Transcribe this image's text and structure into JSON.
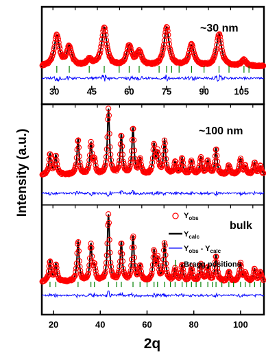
{
  "chart_data": [
    {
      "type": "line",
      "panel": "top",
      "annotation": "~30 nm",
      "x_ticks": [
        "30",
        "45",
        "60",
        "75",
        "90",
        "105"
      ],
      "xlim": [
        25,
        114
      ],
      "peaks": [
        {
          "x": 31,
          "h": 0.62
        },
        {
          "x": 36,
          "h": 0.38
        },
        {
          "x": 44,
          "h": 0.12
        },
        {
          "x": 50,
          "h": 0.78
        },
        {
          "x": 60,
          "h": 0.4
        },
        {
          "x": 64,
          "h": 0.28
        },
        {
          "x": 75,
          "h": 0.78
        },
        {
          "x": 85,
          "h": 0.42
        },
        {
          "x": 96,
          "h": 0.65
        },
        {
          "x": 106,
          "h": 0.12
        }
      ],
      "peak_width": 1.2,
      "bragg_positions": [
        31,
        36,
        44,
        50,
        56,
        60,
        64,
        72,
        75,
        77,
        80,
        85,
        90,
        96,
        100,
        106,
        108
      ],
      "series": [
        {
          "name": "Y_obs"
        },
        {
          "name": "Y_calc"
        },
        {
          "name": "Y_obs - Y_calc"
        },
        {
          "name": "Bragg positions"
        }
      ]
    },
    {
      "type": "line",
      "panel": "middle",
      "annotation": "~100 nm",
      "x_ticks": [
        "20",
        "40",
        "60",
        "80",
        "100"
      ],
      "xlim": [
        15,
        110
      ],
      "peaks": [
        {
          "x": 18.5,
          "h": 0.3
        },
        {
          "x": 21,
          "h": 0.28
        },
        {
          "x": 30.5,
          "h": 0.52
        },
        {
          "x": 36,
          "h": 0.45
        },
        {
          "x": 37.5,
          "h": 0.18
        },
        {
          "x": 43.5,
          "h": 0.97
        },
        {
          "x": 49,
          "h": 0.58
        },
        {
          "x": 54,
          "h": 0.68
        },
        {
          "x": 57,
          "h": 0.22
        },
        {
          "x": 63,
          "h": 0.42
        },
        {
          "x": 64.5,
          "h": 0.3
        },
        {
          "x": 67.5,
          "h": 0.5
        },
        {
          "x": 72,
          "h": 0.18
        },
        {
          "x": 75,
          "h": 0.24
        },
        {
          "x": 79,
          "h": 0.2
        },
        {
          "x": 83,
          "h": 0.25
        },
        {
          "x": 86,
          "h": 0.2
        },
        {
          "x": 89.5,
          "h": 0.38
        },
        {
          "x": 95,
          "h": 0.14
        },
        {
          "x": 100,
          "h": 0.24
        },
        {
          "x": 102,
          "h": 0.12
        },
        {
          "x": 106,
          "h": 0.18
        },
        {
          "x": 108.5,
          "h": 0.12
        }
      ],
      "peak_width": 0.55
    },
    {
      "type": "line",
      "panel": "bottom",
      "annotation": "bulk",
      "x_ticks": [
        "20",
        "40",
        "60",
        "80",
        "100"
      ],
      "xlabel": "2q",
      "xlim": [
        15,
        110
      ],
      "peaks": [
        {
          "x": 18.5,
          "h": 0.3
        },
        {
          "x": 21,
          "h": 0.25
        },
        {
          "x": 30.5,
          "h": 0.58
        },
        {
          "x": 36,
          "h": 0.52
        },
        {
          "x": 37.5,
          "h": 0.2
        },
        {
          "x": 43.5,
          "h": 0.97
        },
        {
          "x": 49,
          "h": 0.56
        },
        {
          "x": 54,
          "h": 0.65
        },
        {
          "x": 57,
          "h": 0.22
        },
        {
          "x": 63,
          "h": 0.42
        },
        {
          "x": 64.5,
          "h": 0.3
        },
        {
          "x": 67.5,
          "h": 0.55
        },
        {
          "x": 72,
          "h": 0.18
        },
        {
          "x": 75,
          "h": 0.24
        },
        {
          "x": 79,
          "h": 0.2
        },
        {
          "x": 83,
          "h": 0.25
        },
        {
          "x": 86,
          "h": 0.2
        },
        {
          "x": 89.5,
          "h": 0.38
        },
        {
          "x": 95,
          "h": 0.14
        },
        {
          "x": 100,
          "h": 0.26
        },
        {
          "x": 102,
          "h": 0.12
        },
        {
          "x": 106,
          "h": 0.18
        },
        {
          "x": 108.5,
          "h": 0.14
        }
      ],
      "peak_width": 0.55,
      "bragg_positions": [
        18.5,
        21,
        30.5,
        36,
        37.5,
        43.5,
        47,
        49,
        54,
        57,
        60,
        63,
        64.5,
        67.5,
        70,
        72,
        75,
        77,
        79,
        81,
        83,
        86,
        88,
        89.5,
        92,
        95,
        97,
        100,
        102,
        104,
        106,
        108.5
      ]
    }
  ],
  "ylabel": "Intensity (a.u.)",
  "legend": {
    "obs": {
      "main": "Y",
      "sub": "obs"
    },
    "calc": {
      "main": "Y",
      "sub": "calc"
    },
    "diff": {
      "main1": "Y",
      "sub1": "obs",
      "mid": " - Y",
      "sub2": "calc"
    },
    "bragg": "Bragg positions"
  },
  "colors": {
    "obs": "#ff0000",
    "calc": "#000000",
    "diff": "#0000ff",
    "bragg": "#008000"
  }
}
